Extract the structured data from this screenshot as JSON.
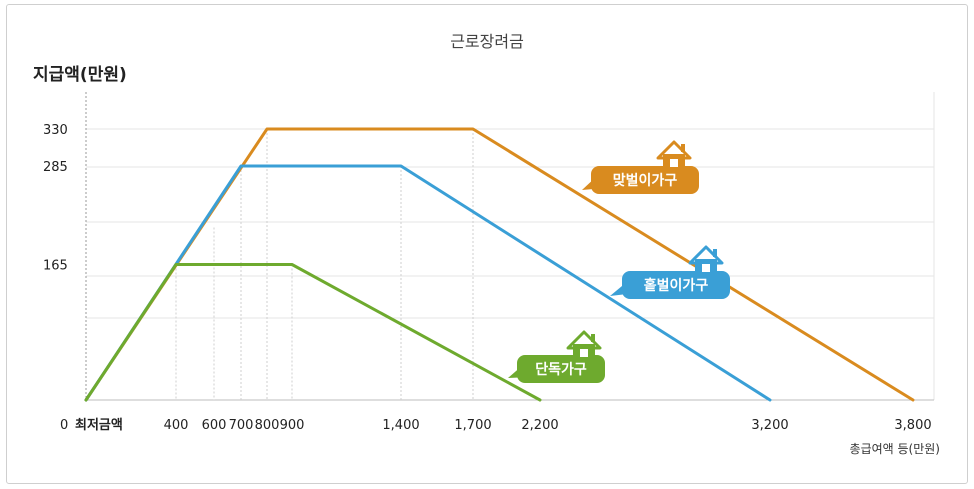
{
  "chart_data": {
    "type": "line",
    "title": "근로장려금",
    "ylabel": "지급액(만원)",
    "xlabel": "총급여액 등(만원)",
    "x_ticks": [
      {
        "x": 0,
        "label": "최저금액"
      },
      {
        "x": 400,
        "label": "400"
      },
      {
        "x": 600,
        "label": "600"
      },
      {
        "x": 700,
        "label": "700"
      },
      {
        "x": 800,
        "label": "800"
      },
      {
        "x": 900,
        "label": "900"
      },
      {
        "x": 1400,
        "label": "1,400"
      },
      {
        "x": 1700,
        "label": "1,700"
      },
      {
        "x": 2200,
        "label": "2,200"
      },
      {
        "x": 3200,
        "label": "3,200"
      },
      {
        "x": 3800,
        "label": "3,800"
      }
    ],
    "y_ticks": [
      {
        "y": 0,
        "label": "0"
      },
      {
        "y": 165,
        "label": "165"
      },
      {
        "y": 285,
        "label": "285"
      },
      {
        "y": 330,
        "label": "330"
      }
    ],
    "ylim": [
      0,
      330
    ],
    "series": [
      {
        "name": "맞벌이가구",
        "color": "#d98b1f",
        "icon": "house-icon",
        "points": [
          [
            0,
            0
          ],
          [
            800,
            330
          ],
          [
            1700,
            330
          ],
          [
            3800,
            0
          ]
        ]
      },
      {
        "name": "홑벌이가구",
        "color": "#3a9fd6",
        "icon": "house-icon",
        "points": [
          [
            0,
            0
          ],
          [
            700,
            285
          ],
          [
            1400,
            285
          ],
          [
            3200,
            0
          ]
        ]
      },
      {
        "name": "단독가구",
        "color": "#6eaa2e",
        "icon": "house-icon",
        "points": [
          [
            0,
            0
          ],
          [
            400,
            165
          ],
          [
            900,
            165
          ],
          [
            2200,
            0
          ]
        ]
      }
    ],
    "grid": true
  }
}
